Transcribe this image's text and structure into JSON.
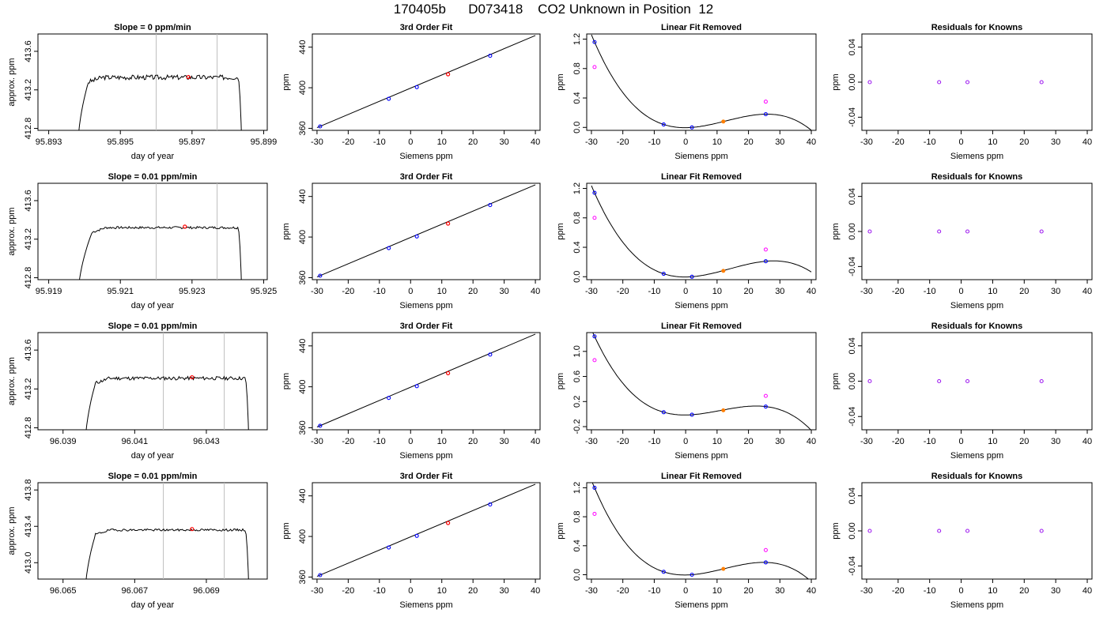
{
  "figure": {
    "title": "170405b      D073418    CO2 Unknown in Position  12"
  },
  "colors": {
    "line": "#000000",
    "frame": "#000000",
    "vline": "#bebebe",
    "unknown_point": "#ff0000",
    "known_point": "#0000ff",
    "unknown_fit_point": "#ff7f00",
    "purple_point": "#a020f0",
    "magenta_point": "#ff00ff"
  },
  "chart_data": [
    {
      "type": "line",
      "row": 0,
      "col": 0,
      "title": "Slope =  0  ppm/min",
      "xlabel": "day of year",
      "ylabel": "approx. ppm",
      "xlim": [
        95.8927,
        95.8991
      ],
      "ylim": [
        412.78,
        413.78
      ],
      "xticks": [
        95.893,
        95.895,
        95.897,
        95.899
      ],
      "xtick_labels": [
        "95.893",
        "95.895",
        "95.897",
        "95.899"
      ],
      "yticks": [
        412.8,
        413.2,
        413.6
      ],
      "ytick_labels": [
        "412.8",
        "413.2",
        "413.6"
      ],
      "vlines": [
        95.896,
        95.8977
      ],
      "marker": {
        "x": 95.8969,
        "y": 413.333
      },
      "trace": {
        "start": 95.8938,
        "end": 95.8984,
        "level": 413.33,
        "noise": 0.025,
        "rise": 0.0003,
        "seed": 3
      }
    },
    {
      "type": "scatter",
      "row": 0,
      "col": 1,
      "title": "3rd Order Fit",
      "xlabel": "Siemens ppm",
      "ylabel": "ppm",
      "xlim": [
        -31.5,
        41.5
      ],
      "ylim": [
        358,
        453
      ],
      "xticks": [
        -30,
        -20,
        -10,
        0,
        10,
        20,
        30,
        40
      ],
      "xtick_labels": [
        "-30",
        "-20",
        "-10",
        "0",
        "10",
        "20",
        "30",
        "40"
      ],
      "yticks": [
        360,
        400,
        440
      ],
      "ytick_labels": [
        "360",
        "400",
        "440"
      ],
      "line_fit": {
        "x0": -30,
        "y0": 360.7,
        "x1": 40,
        "y1": 451.5
      },
      "known_x": [
        -29.0,
        -7.0,
        2.0,
        25.5
      ],
      "known_y": [
        361.9,
        389.1,
        400.6,
        431.5
      ],
      "unknown": {
        "x": 12.0,
        "y": 413.3
      }
    },
    {
      "type": "scatter",
      "row": 0,
      "col": 2,
      "title": "Linear Fit Removed",
      "xlabel": "Siemens ppm",
      "ylabel": "ppm",
      "xlim": [
        -31.5,
        41.5
      ],
      "ylim": [
        -0.04,
        1.27
      ],
      "xticks": [
        -30,
        -20,
        -10,
        0,
        10,
        20,
        30,
        40
      ],
      "xtick_labels": [
        "-30",
        "-20",
        "-10",
        "0",
        "10",
        "20",
        "30",
        "40"
      ],
      "yticks": [
        0.0,
        0.4,
        0.8,
        1.2
      ],
      "ytick_labels": [
        "0.0",
        "0.4",
        "0.8",
        "1.2"
      ],
      "curve": {
        "a": 0.0032,
        "b": 0.1002,
        "c": -0.00167,
        "d": -6.47e-05
      },
      "known_x": [
        -29.0,
        -7.0,
        2.0,
        25.5
      ],
      "known_y": [
        1.16,
        0.04,
        0.0,
        0.18
      ],
      "magenta_x": [
        -29.0,
        25.5
      ],
      "magenta_y": [
        0.82,
        0.35
      ],
      "unknown": {
        "x": 12.0,
        "y": 0.08
      }
    },
    {
      "type": "scatter",
      "row": 0,
      "col": 3,
      "title": "Residuals for Knowns",
      "xlabel": "Siemens ppm",
      "ylabel": "ppm",
      "xlim": [
        -31.5,
        41.5
      ],
      "ylim": [
        -0.055,
        0.055
      ],
      "xticks": [
        -30,
        -20,
        -10,
        0,
        10,
        20,
        30,
        40
      ],
      "xtick_labels": [
        "-30",
        "-20",
        "-10",
        "0",
        "10",
        "20",
        "30",
        "40"
      ],
      "yticks": [
        -0.04,
        0.0,
        0.04
      ],
      "ytick_labels": [
        "-0.04",
        "0.00",
        "0.04"
      ],
      "points_x": [
        -29.0,
        -7.0,
        2.0,
        25.5
      ],
      "points_y": [
        0,
        0,
        0,
        0
      ]
    },
    {
      "type": "line",
      "row": 1,
      "col": 0,
      "title": "Slope =  0.01  ppm/min",
      "xlabel": "day of year",
      "ylabel": "approx. ppm",
      "xlim": [
        95.9187,
        95.9251
      ],
      "ylim": [
        412.78,
        413.78
      ],
      "xticks": [
        95.919,
        95.921,
        95.923,
        95.925
      ],
      "xtick_labels": [
        "95.919",
        "95.921",
        "95.923",
        "95.925"
      ],
      "yticks": [
        412.8,
        413.2,
        413.6
      ],
      "ytick_labels": [
        "412.8",
        "413.2",
        "413.6"
      ],
      "vlines": [
        95.922,
        95.9237
      ],
      "marker": {
        "x": 95.9228,
        "y": 413.33
      },
      "trace": {
        "start": 95.9198,
        "end": 95.9244,
        "level": 413.32,
        "noise": 0.012,
        "rise": 0.0004,
        "seed": 7
      }
    },
    {
      "type": "scatter",
      "row": 1,
      "col": 1,
      "title": "3rd Order Fit",
      "xlabel": "Siemens ppm",
      "ylabel": "ppm",
      "xlim": [
        -31.5,
        41.5
      ],
      "ylim": [
        358,
        453
      ],
      "xticks": [
        -30,
        -20,
        -10,
        0,
        10,
        20,
        30,
        40
      ],
      "xtick_labels": [
        "-30",
        "-20",
        "-10",
        "0",
        "10",
        "20",
        "30",
        "40"
      ],
      "yticks": [
        360,
        400,
        440
      ],
      "ytick_labels": [
        "360",
        "400",
        "440"
      ],
      "line_fit": {
        "x0": -30,
        "y0": 360.7,
        "x1": 40,
        "y1": 451.5
      },
      "known_x": [
        -29.0,
        -7.0,
        2.0,
        25.5
      ],
      "known_y": [
        361.9,
        389.1,
        400.6,
        431.5
      ],
      "unknown": {
        "x": 12.0,
        "y": 413.3
      }
    },
    {
      "type": "scatter",
      "row": 1,
      "col": 2,
      "title": "Linear Fit Removed",
      "xlabel": "Siemens ppm",
      "ylabel": "ppm",
      "xlim": [
        -31.5,
        41.5
      ],
      "ylim": [
        -0.04,
        1.27
      ],
      "xticks": [
        -30,
        -20,
        -10,
        0,
        10,
        20,
        30,
        40
      ],
      "xtick_labels": [
        "-30",
        "-20",
        "-10",
        "0",
        "10",
        "20",
        "30",
        "40"
      ],
      "yticks": [
        0.0,
        0.4,
        0.8,
        1.2
      ],
      "ytick_labels": [
        "0.0",
        "0.4",
        "0.8",
        "1.2"
      ],
      "curve": {
        "a": 0.0038,
        "b": 0.0988,
        "c": -0.0017,
        "d": -6.17e-05
      },
      "known_x": [
        -29.0,
        -7.0,
        2.0,
        25.5
      ],
      "known_y": [
        1.14,
        0.04,
        0.0,
        0.21
      ],
      "magenta_x": [
        -29.0,
        25.5
      ],
      "magenta_y": [
        0.8,
        0.37
      ],
      "unknown": {
        "x": 12.0,
        "y": 0.08
      }
    },
    {
      "type": "scatter",
      "row": 1,
      "col": 3,
      "title": "Residuals for Knowns",
      "xlabel": "Siemens ppm",
      "ylabel": "ppm",
      "xlim": [
        -31.5,
        41.5
      ],
      "ylim": [
        -0.055,
        0.055
      ],
      "xticks": [
        -30,
        -20,
        -10,
        0,
        10,
        20,
        30,
        40
      ],
      "xtick_labels": [
        "-30",
        "-20",
        "-10",
        "0",
        "10",
        "20",
        "30",
        "40"
      ],
      "yticks": [
        -0.04,
        0.0,
        0.04
      ],
      "ytick_labels": [
        "-0.04",
        "0.00",
        "0.04"
      ],
      "points_x": [
        -29.0,
        -7.0,
        2.0,
        25.5
      ],
      "points_y": [
        0,
        0,
        0,
        0
      ]
    },
    {
      "type": "line",
      "row": 2,
      "col": 0,
      "title": "Slope =  0.01  ppm/min",
      "xlabel": "day of year",
      "ylabel": "approx. ppm",
      "xlim": [
        96.0383,
        96.0447
      ],
      "ylim": [
        412.78,
        413.78
      ],
      "xticks": [
        96.039,
        96.041,
        96.043
      ],
      "xtick_labels": [
        "96.039",
        "96.041",
        "96.043"
      ],
      "yticks": [
        412.8,
        413.2,
        413.6
      ],
      "ytick_labels": [
        "412.8",
        "413.2",
        "413.6"
      ],
      "vlines": [
        96.0418,
        96.0435
      ],
      "marker": {
        "x": 96.0426,
        "y": 413.32
      },
      "trace": {
        "start": 96.0396,
        "end": 96.0442,
        "level": 413.31,
        "noise": 0.018,
        "rise": 0.0003,
        "seed": 11
      }
    },
    {
      "type": "scatter",
      "row": 2,
      "col": 1,
      "title": "3rd Order Fit",
      "xlabel": "Siemens ppm",
      "ylabel": "ppm",
      "xlim": [
        -31.5,
        41.5
      ],
      "ylim": [
        358,
        453
      ],
      "xticks": [
        -30,
        -20,
        -10,
        0,
        10,
        20,
        30,
        40
      ],
      "xtick_labels": [
        "-30",
        "-20",
        "-10",
        "0",
        "10",
        "20",
        "30",
        "40"
      ],
      "yticks": [
        360,
        400,
        440
      ],
      "ytick_labels": [
        "360",
        "400",
        "440"
      ],
      "line_fit": {
        "x0": -30,
        "y0": 360.7,
        "x1": 40,
        "y1": 451.5
      },
      "known_x": [
        -29.0,
        -7.0,
        2.0,
        25.5
      ],
      "known_y": [
        361.9,
        389.1,
        400.6,
        431.5
      ],
      "unknown": {
        "x": 12.0,
        "y": 413.3
      }
    },
    {
      "type": "scatter",
      "row": 2,
      "col": 2,
      "title": "Linear Fit Removed",
      "xlabel": "Siemens ppm",
      "ylabel": "ppm",
      "xlim": [
        -31.5,
        41.5
      ],
      "ylim": [
        -0.25,
        1.3
      ],
      "xticks": [
        -30,
        -20,
        -10,
        0,
        10,
        20,
        30,
        40
      ],
      "xtick_labels": [
        "-30",
        "-20",
        "-10",
        "0",
        "10",
        "20",
        "30",
        "40"
      ],
      "yticks": [
        -0.2,
        0.2,
        0.6,
        1.0
      ],
      "ytick_labels": [
        "-0.2",
        "0.2",
        "0.6",
        "1.0"
      ],
      "curve": {
        "a": -0.0054,
        "b": 0.1059,
        "c": -0.00158,
        "d": -7.55e-05
      },
      "known_x": [
        -29.0,
        -7.0,
        2.0,
        25.5
      ],
      "known_y": [
        1.24,
        0.03,
        -0.01,
        0.12
      ],
      "magenta_x": [
        -29.0,
        25.5
      ],
      "magenta_y": [
        0.86,
        0.29
      ],
      "unknown": {
        "x": 12.0,
        "y": 0.06
      }
    },
    {
      "type": "scatter",
      "row": 2,
      "col": 3,
      "title": "Residuals for Knowns",
      "xlabel": "Siemens ppm",
      "ylabel": "ppm",
      "xlim": [
        -31.5,
        41.5
      ],
      "ylim": [
        -0.055,
        0.055
      ],
      "xticks": [
        -30,
        -20,
        -10,
        0,
        10,
        20,
        30,
        40
      ],
      "xtick_labels": [
        "-30",
        "-20",
        "-10",
        "0",
        "10",
        "20",
        "30",
        "40"
      ],
      "yticks": [
        -0.04,
        0.0,
        0.04
      ],
      "ytick_labels": [
        "-0.04",
        "0.00",
        "0.04"
      ],
      "points_x": [
        -29.0,
        -7.0,
        2.0,
        25.5
      ],
      "points_y": [
        0,
        0,
        0,
        0
      ]
    },
    {
      "type": "line",
      "row": 3,
      "col": 0,
      "title": "Slope =  0.01  ppm/min",
      "xlabel": "day of year",
      "ylabel": "approx. ppm",
      "xlim": [
        96.0643,
        96.0707
      ],
      "ylim": [
        412.82,
        413.88
      ],
      "xticks": [
        96.065,
        96.067,
        96.069
      ],
      "xtick_labels": [
        "96.065",
        "96.067",
        "96.069"
      ],
      "yticks": [
        413.0,
        413.4,
        413.8
      ],
      "ytick_labels": [
        "413.0",
        "413.4",
        "413.8"
      ],
      "vlines": [
        96.0678,
        96.0695
      ],
      "marker": {
        "x": 96.0686,
        "y": 413.37
      },
      "trace": {
        "start": 96.0656,
        "end": 96.0702,
        "level": 413.36,
        "noise": 0.012,
        "rise": 0.0003,
        "seed": 19
      }
    },
    {
      "type": "scatter",
      "row": 3,
      "col": 1,
      "title": "3rd Order Fit",
      "xlabel": "Siemens ppm",
      "ylabel": "ppm",
      "xlim": [
        -31.5,
        41.5
      ],
      "ylim": [
        358,
        453
      ],
      "xticks": [
        -30,
        -20,
        -10,
        0,
        10,
        20,
        30,
        40
      ],
      "xtick_labels": [
        "-30",
        "-20",
        "-10",
        "0",
        "10",
        "20",
        "30",
        "40"
      ],
      "yticks": [
        360,
        400,
        440
      ],
      "ytick_labels": [
        "360",
        "400",
        "440"
      ],
      "line_fit": {
        "x0": -30,
        "y0": 360.7,
        "x1": 40,
        "y1": 451.5
      },
      "known_x": [
        -29.0,
        -7.0,
        2.0,
        25.5
      ],
      "known_y": [
        361.9,
        389.1,
        400.6,
        431.5
      ],
      "unknown": {
        "x": 12.0,
        "y": 413.3
      }
    },
    {
      "type": "scatter",
      "row": 3,
      "col": 2,
      "title": "Linear Fit Removed",
      "xlabel": "Siemens ppm",
      "ylabel": "ppm",
      "xlim": [
        -31.5,
        41.5
      ],
      "ylim": [
        -0.06,
        1.27
      ],
      "xticks": [
        -30,
        -20,
        -10,
        0,
        10,
        20,
        30,
        40
      ],
      "xtick_labels": [
        "-30",
        "-20",
        "-10",
        "0",
        "10",
        "20",
        "30",
        "40"
      ],
      "yticks": [
        0.0,
        0.4,
        0.8,
        1.2
      ],
      "ytick_labels": [
        "0.0",
        "0.4",
        "0.8",
        "1.2"
      ],
      "curve": {
        "a": 0.0075,
        "b": 0.104,
        "c": -0.00183,
        "d": -7.1e-05
      },
      "known_x": [
        -29.0,
        -7.0,
        2.0,
        25.5
      ],
      "known_y": [
        1.2,
        0.04,
        0.0,
        0.17
      ],
      "magenta_x": [
        -29.0,
        25.5
      ],
      "magenta_y": [
        0.84,
        0.34
      ],
      "unknown": {
        "x": 12.0,
        "y": 0.08
      }
    },
    {
      "type": "scatter",
      "row": 3,
      "col": 3,
      "title": "Residuals for Knowns",
      "xlabel": "Siemens ppm",
      "ylabel": "ppm",
      "xlim": [
        -31.5,
        41.5
      ],
      "ylim": [
        -0.055,
        0.055
      ],
      "xticks": [
        -30,
        -20,
        -10,
        0,
        10,
        20,
        30,
        40
      ],
      "xtick_labels": [
        "-30",
        "-20",
        "-10",
        "0",
        "10",
        "20",
        "30",
        "40"
      ],
      "yticks": [
        -0.04,
        0.0,
        0.04
      ],
      "ytick_labels": [
        "-0.04",
        "0.00",
        "0.04"
      ],
      "points_x": [
        -29.0,
        -7.0,
        2.0,
        25.5
      ],
      "points_y": [
        0,
        0,
        0,
        0
      ]
    }
  ]
}
